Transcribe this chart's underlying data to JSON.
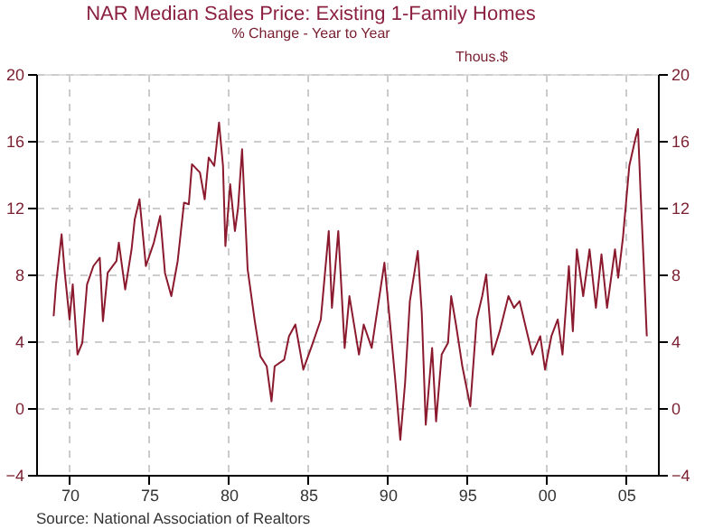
{
  "chart_data": {
    "type": "line",
    "title": "NAR Median Sales Price: Existing 1-Family Homes",
    "subtitle": "% Change - Year to Year",
    "annotations": [
      "Thous.$",
      "Source:  National Association of Realtors"
    ],
    "x": [
      1969.0,
      1969.15,
      1969.5,
      1969.7,
      1970.0,
      1970.2,
      1970.5,
      1970.8,
      1971.1,
      1971.5,
      1971.9,
      1972.1,
      1972.4,
      1972.95,
      1973.1,
      1973.5,
      1973.9,
      1974.1,
      1974.4,
      1974.8,
      1975.3,
      1975.7,
      1976.0,
      1976.4,
      1976.8,
      1977.2,
      1977.5,
      1977.7,
      1978.2,
      1978.5,
      1978.75,
      1979.1,
      1979.4,
      1979.65,
      1979.8,
      1980.1,
      1980.4,
      1980.6,
      1980.85,
      1981.2,
      1981.65,
      1982.0,
      1982.4,
      1982.7,
      1982.9,
      1983.5,
      1983.8,
      1984.2,
      1984.7,
      1985.3,
      1985.8,
      1986.3,
      1986.5,
      1986.9,
      1987.3,
      1987.6,
      1988.2,
      1988.5,
      1989.0,
      1989.8,
      1990.2,
      1990.5,
      1990.8,
      1991.1,
      1991.4,
      1991.9,
      1992.15,
      1992.4,
      1992.8,
      1993.05,
      1993.4,
      1993.8,
      1994.0,
      1994.3,
      1994.7,
      1995.2,
      1995.6,
      1995.95,
      1996.2,
      1996.6,
      1997.05,
      1997.6,
      1997.95,
      1998.3,
      1998.75,
      1999.1,
      1999.6,
      1999.9,
      2000.3,
      2000.7,
      2001.0,
      2001.4,
      2001.65,
      2001.9,
      2002.3,
      2002.7,
      2003.1,
      2003.45,
      2003.8,
      2004.3,
      2004.5,
      2004.8,
      2005.2,
      2005.6,
      2005.75,
      2005.9,
      2006.1,
      2006.3
    ],
    "series": [
      {
        "color": "#8b1a2e",
        "values": [
          5.5,
          7.4,
          10.4,
          8.1,
          5.3,
          7.4,
          3.2,
          3.9,
          7.4,
          8.5,
          9.0,
          5.2,
          8.1,
          8.8,
          9.9,
          7.1,
          9.5,
          11.3,
          12.5,
          8.5,
          9.9,
          11.5,
          8.1,
          6.7,
          8.8,
          12.3,
          12.2,
          14.6,
          14.1,
          12.5,
          15.0,
          14.5,
          17.1,
          14.5,
          9.7,
          13.4,
          10.6,
          12.0,
          15.5,
          8.3,
          5.2,
          3.1,
          2.5,
          0.4,
          2.5,
          2.9,
          4.3,
          5.0,
          2.3,
          3.9,
          5.3,
          10.6,
          6.0,
          10.6,
          3.6,
          6.7,
          3.2,
          5.0,
          3.6,
          8.7,
          4.6,
          1.5,
          -1.9,
          1.5,
          6.4,
          9.4,
          5.7,
          -1.0,
          3.6,
          -0.8,
          3.2,
          3.9,
          6.7,
          5.0,
          2.5,
          0.1,
          5.3,
          6.7,
          8.0,
          3.2,
          4.6,
          6.7,
          6.0,
          6.4,
          4.6,
          3.2,
          4.3,
          2.3,
          4.3,
          5.3,
          3.2,
          8.5,
          4.6,
          9.5,
          6.7,
          9.5,
          6.0,
          9.2,
          6.0,
          9.5,
          7.8,
          10.2,
          14.5,
          16.2,
          16.7,
          13.1,
          8.8,
          4.3
        ]
      }
    ],
    "xlim": [
      1967.9,
      2007.0
    ],
    "xticks": [
      {
        "value": 1970,
        "label": "70"
      },
      {
        "value": 1975,
        "label": "75"
      },
      {
        "value": 1980,
        "label": "80"
      },
      {
        "value": 1985,
        "label": "85"
      },
      {
        "value": 1990,
        "label": "90"
      },
      {
        "value": 1995,
        "label": "95"
      },
      {
        "value": 2000,
        "label": "00"
      },
      {
        "value": 2005,
        "label": "05"
      }
    ],
    "ylim": [
      -4,
      20
    ],
    "yticks": [
      -4,
      0,
      4,
      8,
      12,
      16,
      20
    ],
    "y2lim": [
      -4,
      20
    ],
    "y2ticks": [
      -4,
      0,
      4,
      8,
      12,
      16,
      20
    ],
    "grid": true,
    "line_style": "solid",
    "marker": "none"
  }
}
